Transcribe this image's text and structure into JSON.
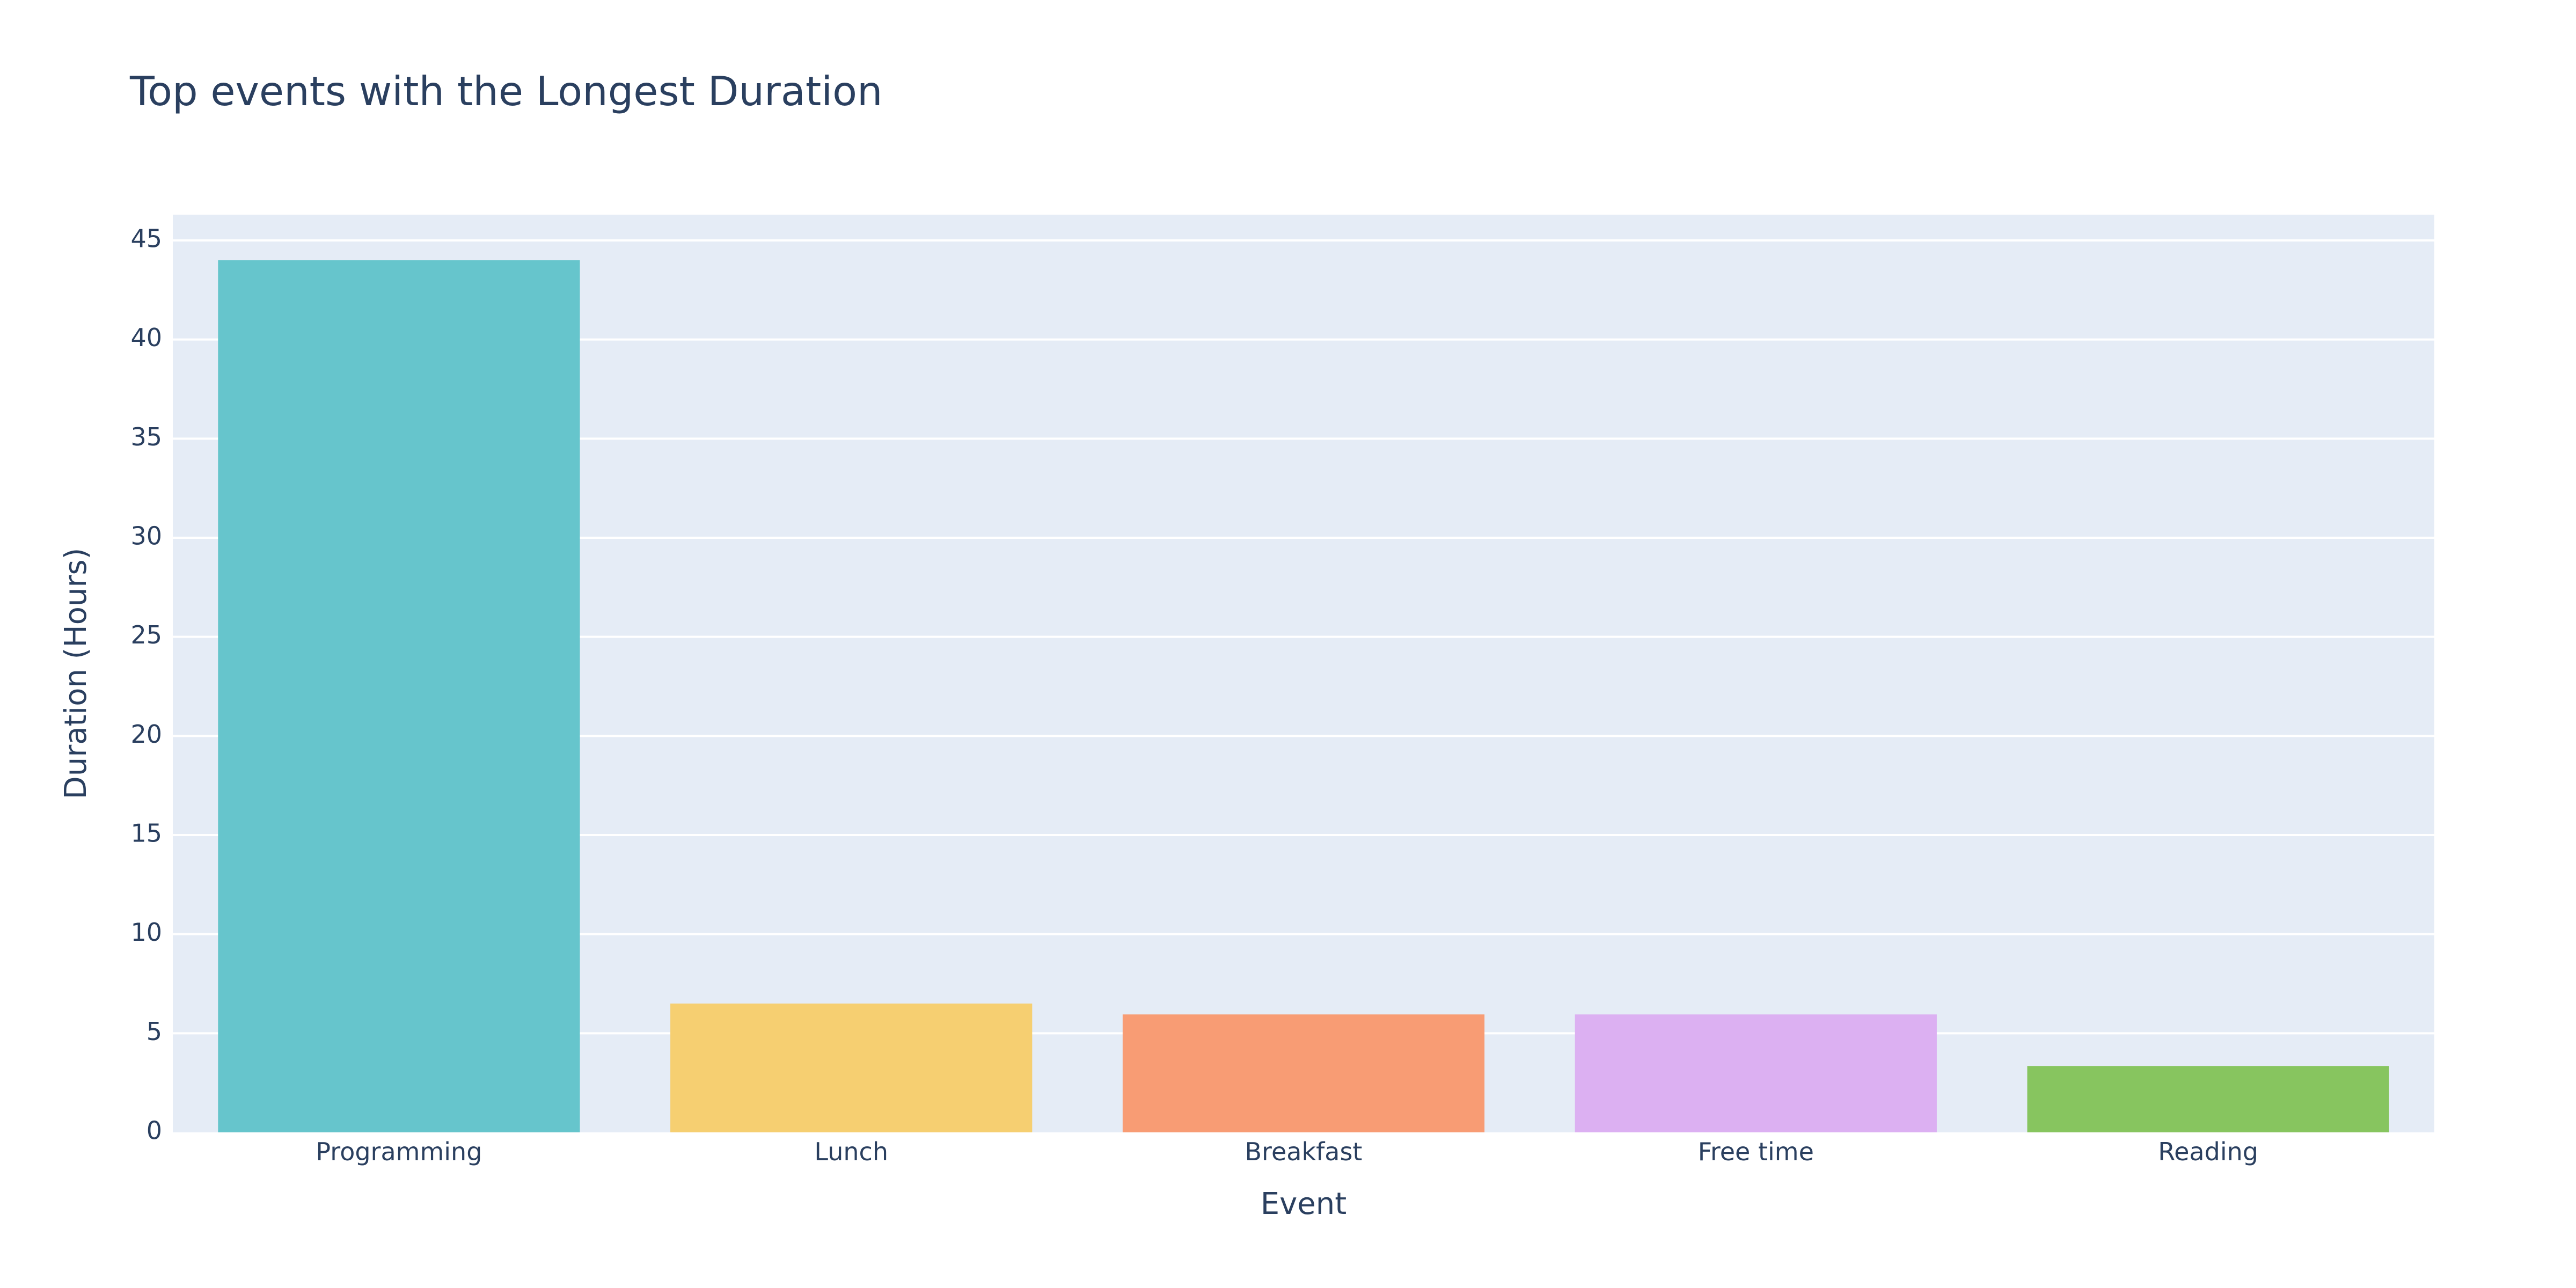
{
  "chart_data": {
    "type": "bar",
    "title": "Top events with the Longest Duration",
    "xlabel": "Event",
    "ylabel": "Duration (Hours)",
    "categories": [
      "Programming",
      "Lunch",
      "Breakfast",
      "Free time",
      "Reading"
    ],
    "values": [
      44.0,
      6.5,
      5.95,
      5.95,
      3.35
    ],
    "colors": [
      "#66c5cc",
      "#f6cf71",
      "#f89c74",
      "#dcb0f2",
      "#87c55f"
    ],
    "ylim": [
      0,
      46.3
    ],
    "yticks": [
      0,
      5,
      10,
      15,
      20,
      25,
      30,
      35,
      40,
      45
    ],
    "grid": true,
    "legend": "none",
    "plot_background": "#e5ecf6",
    "text_color": "#2a3f5f"
  }
}
